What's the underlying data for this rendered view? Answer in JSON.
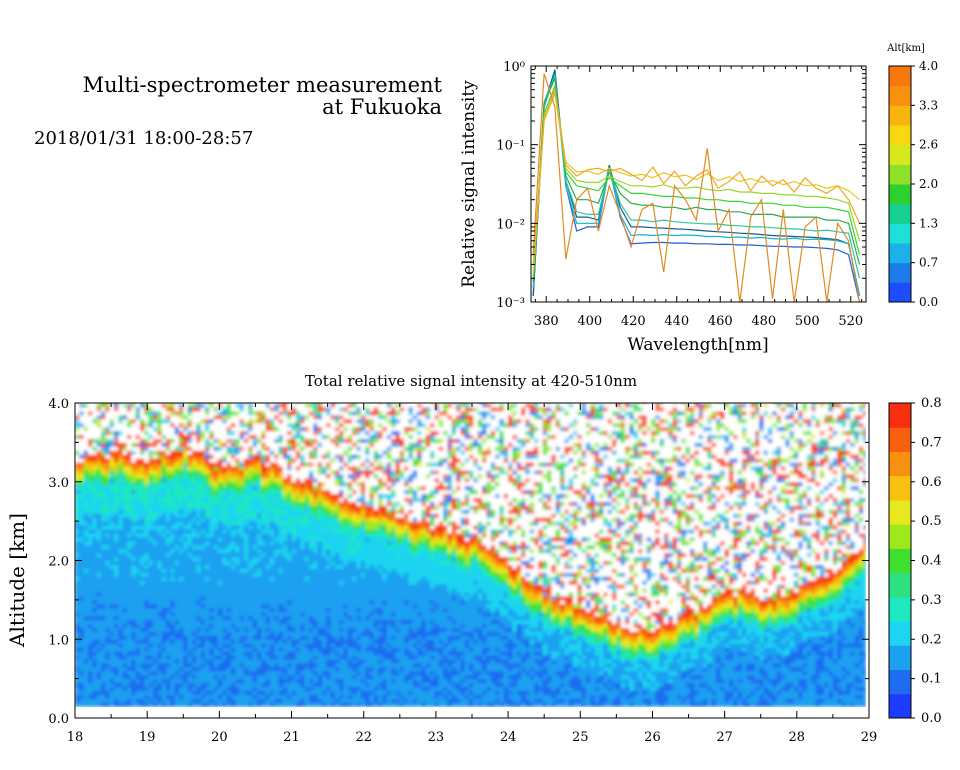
{
  "header": {
    "title": "Multi-spectrometer measurement\nat Fukuoka",
    "date": "2018/01/31 18:00-28:57"
  },
  "chart_data": [
    {
      "type": "line",
      "title": "",
      "xlabel": "Wavelength[nm]",
      "ylabel": "Relative signal intensity",
      "yscale": "log",
      "xlim": [
        373,
        527
      ],
      "ylim": [
        0.001,
        1
      ],
      "x_ticks": [
        380,
        400,
        420,
        440,
        460,
        480,
        500,
        520
      ],
      "y_ticks": [
        {
          "value": 0.001,
          "label": "10⁻³"
        },
        {
          "value": 0.01,
          "label": "10⁻²"
        },
        {
          "value": 0.1,
          "label": "10⁻¹"
        },
        {
          "value": 1,
          "label": "10⁰"
        }
      ],
      "x": [
        374,
        379,
        384,
        389,
        394,
        399,
        404,
        409,
        414,
        419,
        424,
        429,
        434,
        439,
        444,
        449,
        454,
        459,
        464,
        469,
        474,
        479,
        484,
        489,
        494,
        499,
        504,
        509,
        514,
        519,
        524
      ],
      "series": [
        {
          "color": "#1e5cd8",
          "values": [
            0.0012,
            0.3,
            0.85,
            0.03,
            0.008,
            0.009,
            0.009,
            0.052,
            0.012,
            0.0055,
            0.0056,
            0.0057,
            0.0057,
            0.0056,
            0.0056,
            0.0055,
            0.0055,
            0.0054,
            0.0054,
            0.0053,
            0.0053,
            0.0052,
            0.0051,
            0.0051,
            0.005,
            0.005,
            0.0049,
            0.0048,
            0.0046,
            0.004,
            0.001
          ]
        },
        {
          "color": "#155a8a",
          "values": [
            0.0012,
            0.32,
            0.9,
            0.035,
            0.012,
            0.012,
            0.011,
            0.055,
            0.016,
            0.009,
            0.009,
            0.0088,
            0.0087,
            0.0085,
            0.0084,
            0.0082,
            0.008,
            0.0078,
            0.0077,
            0.0075,
            0.0074,
            0.0072,
            0.007,
            0.0069,
            0.0068,
            0.0067,
            0.0066,
            0.0064,
            0.0062,
            0.0055,
            0.0012
          ]
        },
        {
          "color": "#12b4d4",
          "values": [
            0.0015,
            0.3,
            0.8,
            0.03,
            0.01,
            0.01,
            0.01,
            0.05,
            0.013,
            0.007,
            0.0072,
            0.007,
            0.0072,
            0.007,
            0.0071,
            0.007,
            0.0068,
            0.0068,
            0.0066,
            0.0067,
            0.0065,
            0.0066,
            0.0064,
            0.0063,
            0.0065,
            0.0062,
            0.0063,
            0.0062,
            0.006,
            0.0055,
            0.0012
          ]
        },
        {
          "color": "#2cc8a0",
          "values": [
            0.0016,
            0.35,
            0.75,
            0.035,
            0.014,
            0.013,
            0.013,
            0.05,
            0.018,
            0.011,
            0.011,
            0.0105,
            0.011,
            0.0105,
            0.0102,
            0.01,
            0.0098,
            0.0098,
            0.0094,
            0.0093,
            0.009,
            0.009,
            0.0088,
            0.0086,
            0.0085,
            0.0083,
            0.008,
            0.0082,
            0.0078,
            0.0075,
            0.002
          ]
        },
        {
          "color": "#2aa84a",
          "values": [
            0.0018,
            0.33,
            0.7,
            0.04,
            0.02,
            0.02,
            0.018,
            0.045,
            0.024,
            0.018,
            0.017,
            0.017,
            0.016,
            0.016,
            0.015,
            0.016,
            0.015,
            0.015,
            0.014,
            0.014,
            0.013,
            0.013,
            0.013,
            0.012,
            0.012,
            0.012,
            0.012,
            0.011,
            0.011,
            0.01,
            0.003
          ]
        },
        {
          "color": "#36d82e",
          "values": [
            0.002,
            0.25,
            0.55,
            0.045,
            0.03,
            0.028,
            0.026,
            0.038,
            0.03,
            0.024,
            0.024,
            0.023,
            0.022,
            0.022,
            0.021,
            0.021,
            0.02,
            0.02,
            0.019,
            0.019,
            0.018,
            0.018,
            0.018,
            0.017,
            0.017,
            0.016,
            0.016,
            0.016,
            0.015,
            0.014,
            0.004
          ]
        },
        {
          "color": "#9ad82a",
          "values": [
            0.0022,
            0.2,
            0.45,
            0.05,
            0.035,
            0.033,
            0.033,
            0.04,
            0.034,
            0.03,
            0.03,
            0.029,
            0.031,
            0.028,
            0.028,
            0.029,
            0.027,
            0.026,
            0.027,
            0.025,
            0.025,
            0.024,
            0.024,
            0.023,
            0.023,
            0.022,
            0.022,
            0.021,
            0.02,
            0.018,
            0.006
          ]
        },
        {
          "color": "#e6c81e",
          "values": [
            0.0025,
            0.2,
            0.5,
            0.06,
            0.045,
            0.046,
            0.042,
            0.05,
            0.044,
            0.04,
            0.042,
            0.038,
            0.044,
            0.039,
            0.041,
            0.036,
            0.043,
            0.035,
            0.039,
            0.034,
            0.037,
            0.033,
            0.035,
            0.031,
            0.034,
            0.03,
            0.031,
            0.028,
            0.03,
            0.026,
            0.02
          ]
        },
        {
          "color": "#f0a822",
          "values": [
            0.003,
            0.22,
            0.5,
            0.055,
            0.04,
            0.048,
            0.05,
            0.045,
            0.05,
            0.042,
            0.035,
            0.052,
            0.032,
            0.046,
            0.03,
            0.04,
            0.048,
            0.028,
            0.034,
            0.045,
            0.026,
            0.04,
            0.03,
            0.036,
            0.025,
            0.038,
            0.028,
            0.024,
            0.03,
            0.02,
            0.01
          ]
        },
        {
          "color": "#e28a22",
          "values": [
            0.004,
            0.8,
            0.3,
            0.0035,
            0.02,
            0.028,
            0.008,
            0.03,
            0.013,
            0.005,
            0.015,
            0.018,
            0.0024,
            0.03,
            0.02,
            0.011,
            0.09,
            0.008,
            0.015,
            0.001,
            0.012,
            0.02,
            0.0011,
            0.015,
            0.001,
            0.009,
            0.012,
            0.001,
            0.01,
            0.006,
            0.001
          ]
        }
      ],
      "colorbar": {
        "title": "Alt[km]",
        "vmin": 0,
        "vmax": 4,
        "ticks": [
          "0.0",
          "0.7",
          "1.3",
          "2.0",
          "2.6",
          "3.3",
          "4.0"
        ],
        "colors": [
          "#1e4cff",
          "#1e7ce8",
          "#1eb0e8",
          "#1ee0d8",
          "#18d090",
          "#2ed030",
          "#8ee02a",
          "#d8e81e",
          "#f8d80e",
          "#f8b40e",
          "#f89010",
          "#f87810"
        ]
      }
    },
    {
      "type": "heatmap",
      "title": "Total relative signal intensity at 420-510nm",
      "xlabel": "",
      "ylabel": "Altitude [km]",
      "xlim": [
        18,
        29
      ],
      "ylim": [
        0,
        4
      ],
      "x_ticks": [
        "18",
        "19",
        "20",
        "21",
        "22",
        "23",
        "24",
        "25",
        "26",
        "27",
        "28",
        "29"
      ],
      "y_ticks": [
        "0.0",
        "1.0",
        "2.0",
        "3.0",
        "4.0"
      ],
      "time_range": [
        18.0,
        28.95
      ],
      "altitude_range": [
        0.15,
        4.0
      ],
      "cloud_base_km": [
        {
          "t": 18.0,
          "alt": 3.2
        },
        {
          "t": 18.5,
          "alt": 3.3
        },
        {
          "t": 19.0,
          "alt": 3.2
        },
        {
          "t": 19.5,
          "alt": 3.4
        },
        {
          "t": 20.0,
          "alt": 3.1
        },
        {
          "t": 20.5,
          "alt": 3.2
        },
        {
          "t": 21.0,
          "alt": 3.0
        },
        {
          "t": 21.5,
          "alt": 2.8
        },
        {
          "t": 22.0,
          "alt": 2.6
        },
        {
          "t": 22.5,
          "alt": 2.5
        },
        {
          "t": 23.0,
          "alt": 2.35
        },
        {
          "t": 23.5,
          "alt": 2.2
        },
        {
          "t": 24.0,
          "alt": 1.9
        },
        {
          "t": 24.5,
          "alt": 1.5
        },
        {
          "t": 25.0,
          "alt": 1.35
        },
        {
          "t": 25.5,
          "alt": 1.15
        },
        {
          "t": 26.0,
          "alt": 1.05
        },
        {
          "t": 26.5,
          "alt": 1.25
        },
        {
          "t": 27.0,
          "alt": 1.6
        },
        {
          "t": 27.5,
          "alt": 1.45
        },
        {
          "t": 28.0,
          "alt": 1.55
        },
        {
          "t": 28.5,
          "alt": 1.8
        },
        {
          "t": 28.95,
          "alt": 2.2
        }
      ],
      "colorbar": {
        "vmin": 0,
        "vmax": 0.8,
        "ticks": [
          "0.0",
          "0.1",
          "0.2",
          "0.3",
          "0.4",
          "0.5",
          "0.6",
          "0.7",
          "0.8"
        ],
        "colors": [
          "#1e3cff",
          "#1e6cf0",
          "#1ea0f0",
          "#1ed4f0",
          "#1ee8c0",
          "#2ee080",
          "#40e030",
          "#9ee820",
          "#e8e820",
          "#f8c010",
          "#f89010",
          "#f86010",
          "#f83010"
        ]
      }
    }
  ]
}
